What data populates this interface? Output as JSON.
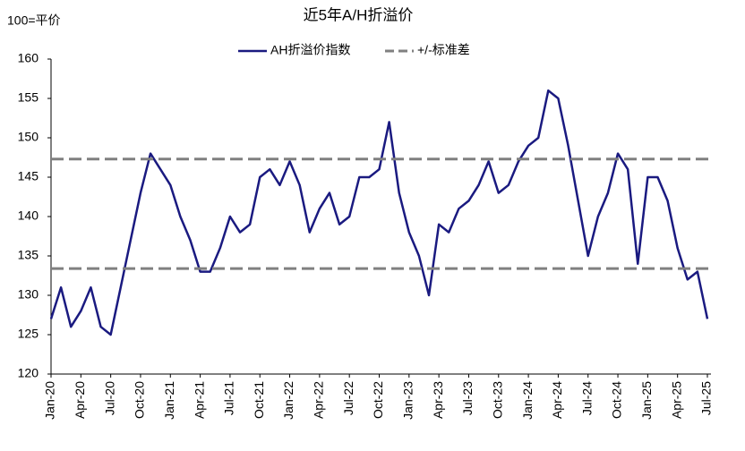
{
  "chart_data": {
    "type": "line",
    "title": "近5年A/H折溢价",
    "ylabel": "100=平价",
    "categories": [
      "Jan-20",
      null,
      null,
      "Apr-20",
      null,
      null,
      "Jul-20",
      null,
      null,
      "Oct-20",
      null,
      null,
      "Jan-21",
      null,
      null,
      "Apr-21",
      null,
      null,
      "Jul-21",
      null,
      null,
      "Oct-21",
      null,
      null,
      "Jan-22",
      null,
      null,
      "Apr-22",
      null,
      null,
      "Jul-22",
      null,
      null,
      "Oct-22",
      null,
      null,
      "Jan-23",
      null,
      null,
      "Apr-23",
      null,
      null,
      "Jul-23",
      null,
      null,
      "Oct-23",
      null,
      null,
      "Jan-24",
      null,
      null,
      "Apr-24",
      null,
      null,
      "Jul-24",
      null,
      null,
      "Oct-24",
      null,
      null,
      "Jan-25",
      null,
      null,
      "Apr-25",
      null,
      null,
      "Jul-25"
    ],
    "series": [
      {
        "name": "AH折溢价指数",
        "color": "#1a1a80",
        "values": [
          127,
          131,
          126,
          128,
          131,
          126,
          125,
          131,
          137,
          143,
          148,
          146,
          144,
          140,
          137,
          133,
          133,
          136,
          140,
          138,
          139,
          145,
          146,
          144,
          147,
          144,
          138,
          141,
          143,
          139,
          140,
          145,
          145,
          146,
          152,
          143,
          138,
          135,
          130,
          139,
          138,
          141,
          142,
          144,
          147,
          143,
          144,
          147,
          149,
          150,
          156,
          155,
          149,
          142,
          135,
          140,
          143,
          148,
          146,
          134,
          145,
          145,
          142,
          136,
          132,
          133,
          127
        ]
      },
      {
        "name": "+/-标准差",
        "color": "#808080",
        "bands": [
          147.3,
          133.4
        ]
      }
    ],
    "ylim": [
      120,
      160
    ],
    "yticks": [
      120,
      125,
      130,
      135,
      140,
      145,
      150,
      155,
      160
    ],
    "grid": false
  }
}
